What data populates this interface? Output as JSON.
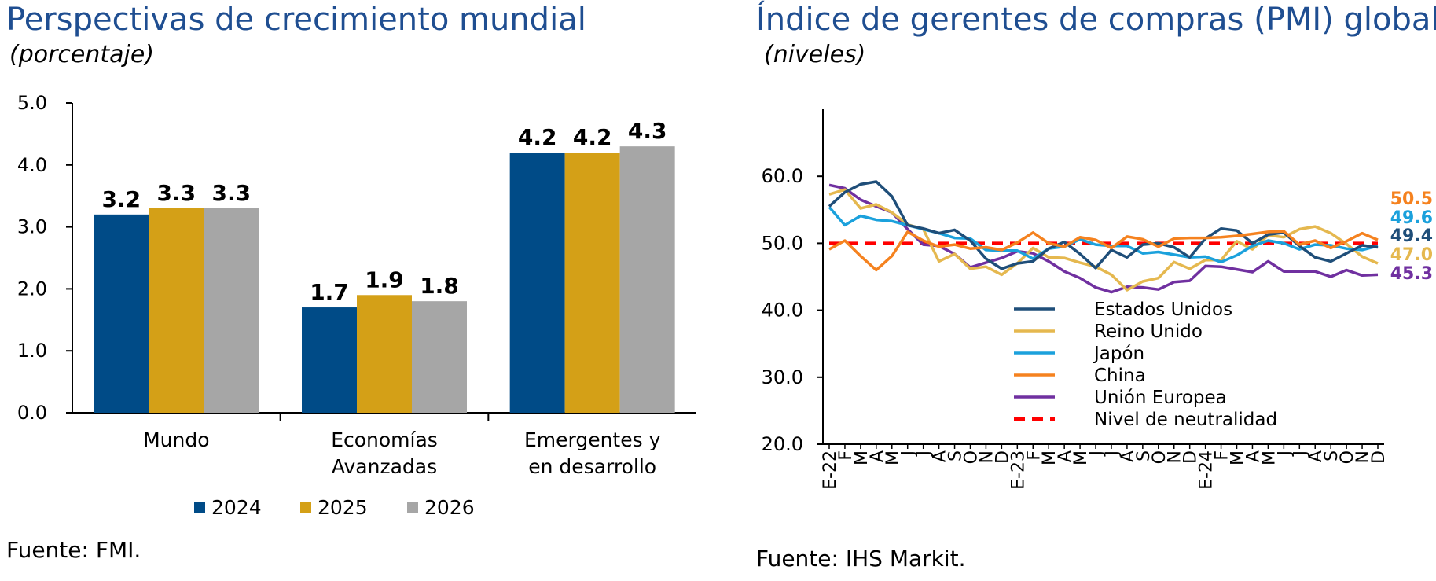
{
  "left_panel": {
    "title": "Perspectivas de crecimiento mundial",
    "subtitle": "(porcentaje)",
    "source": "Fuente: FMI."
  },
  "right_panel": {
    "title": "Índice de gerentes de compras (PMI) global",
    "subtitle": "(niveles)",
    "source": "Fuente: IHS Markit."
  },
  "chart_data": [
    {
      "type": "bar",
      "categories": [
        [
          "Mundo"
        ],
        [
          "Economías",
          "Avanzadas"
        ],
        [
          "Emergentes y",
          "en desarrollo"
        ]
      ],
      "series": [
        {
          "name": "2024",
          "color": "#004b87",
          "values": [
            3.2,
            1.7,
            4.2
          ]
        },
        {
          "name": "2025",
          "color": "#d4a017",
          "values": [
            3.3,
            1.9,
            4.2
          ]
        },
        {
          "name": "2026",
          "color": "#a6a6a6",
          "values": [
            3.3,
            1.8,
            4.3
          ]
        }
      ],
      "ylim": [
        0,
        5
      ],
      "yticks": [
        "0.0",
        "1.0",
        "2.0",
        "3.0",
        "4.0",
        "5.0"
      ],
      "legend_position": "bottom",
      "data_labels": true
    },
    {
      "type": "line",
      "x": [
        "E-22",
        "F",
        "M",
        "A",
        "M",
        "J",
        "J",
        "A",
        "S",
        "O",
        "N",
        "D",
        "E-23",
        "F",
        "M",
        "A",
        "M",
        "J",
        "J",
        "A",
        "S",
        "O",
        "N",
        "D",
        "E-24",
        "F",
        "M",
        "A",
        "M",
        "J",
        "J",
        "A",
        "S",
        "O",
        "N",
        "D"
      ],
      "ylim": [
        20,
        70
      ],
      "yticks": [
        "20.0",
        "30.0",
        "40.0",
        "50.0",
        "60.0"
      ],
      "series": [
        {
          "name": "Estados Unidos",
          "color": "#1f4e79",
          "end_label": "49.4",
          "values": [
            55.5,
            57.6,
            58.8,
            59.2,
            57.0,
            52.7,
            52.2,
            51.5,
            52.0,
            50.4,
            47.7,
            46.2,
            47.0,
            47.3,
            49.2,
            50.2,
            48.4,
            46.3,
            49.0,
            47.9,
            49.8,
            50.0,
            49.4,
            47.9,
            50.7,
            52.2,
            51.9,
            50.0,
            51.3,
            51.6,
            49.6,
            47.9,
            47.3,
            48.5,
            49.7,
            49.4
          ]
        },
        {
          "name": "Reino Unido",
          "color": "#e5b84f",
          "end_label": "47.0",
          "values": [
            57.3,
            58.0,
            55.2,
            55.8,
            54.6,
            52.8,
            52.1,
            47.3,
            48.4,
            46.2,
            46.5,
            45.3,
            47.0,
            49.3,
            47.9,
            47.8,
            47.1,
            46.5,
            45.3,
            43.0,
            44.3,
            44.8,
            47.2,
            46.2,
            47.5,
            47.5,
            50.3,
            49.1,
            51.2,
            50.9,
            52.1,
            52.5,
            51.5,
            49.9,
            48.0,
            47.0
          ]
        },
        {
          "name": "Japón",
          "color": "#1ba1dc",
          "end_label": "49.6",
          "values": [
            55.4,
            52.7,
            54.1,
            53.5,
            53.3,
            52.7,
            52.1,
            51.5,
            50.8,
            50.7,
            49.0,
            48.9,
            48.9,
            47.7,
            49.2,
            49.5,
            50.6,
            49.8,
            49.6,
            49.6,
            48.5,
            48.7,
            48.3,
            47.9,
            48.0,
            47.2,
            48.2,
            49.6,
            50.4,
            50.0,
            49.1,
            49.8,
            49.7,
            49.2,
            49.0,
            49.6
          ]
        },
        {
          "name": "China",
          "color": "#f5821f",
          "end_label": "50.5",
          "values": [
            49.1,
            50.4,
            48.1,
            46.0,
            48.1,
            51.7,
            50.4,
            49.5,
            49.8,
            49.2,
            49.4,
            49.0,
            50.1,
            51.6,
            50.0,
            49.5,
            50.9,
            50.5,
            49.3,
            51.0,
            50.6,
            49.5,
            50.7,
            50.8,
            50.8,
            50.9,
            51.1,
            51.4,
            51.7,
            51.8,
            49.8,
            50.4,
            49.3,
            50.3,
            51.5,
            50.5
          ]
        },
        {
          "name": "Unión Europea",
          "color": "#7030a0",
          "end_label": "45.3",
          "values": [
            58.7,
            58.2,
            56.5,
            55.5,
            54.6,
            52.1,
            49.8,
            49.6,
            48.4,
            46.4,
            47.1,
            47.8,
            48.8,
            48.5,
            47.3,
            45.8,
            44.8,
            43.4,
            42.7,
            43.5,
            43.4,
            43.1,
            44.2,
            44.4,
            46.6,
            46.5,
            46.1,
            45.7,
            47.3,
            45.8,
            45.8,
            45.8,
            45.0,
            46.0,
            45.2,
            45.3
          ]
        },
        {
          "name": "Nivel de neutralidad",
          "color": "#ff0000",
          "dashed": true,
          "values": [
            50,
            50,
            50,
            50,
            50,
            50,
            50,
            50,
            50,
            50,
            50,
            50,
            50,
            50,
            50,
            50,
            50,
            50,
            50,
            50,
            50,
            50,
            50,
            50,
            50,
            50,
            50,
            50,
            50,
            50,
            50,
            50,
            50,
            50,
            50,
            50
          ]
        }
      ],
      "legend_position": "inside-bottom-center"
    }
  ]
}
